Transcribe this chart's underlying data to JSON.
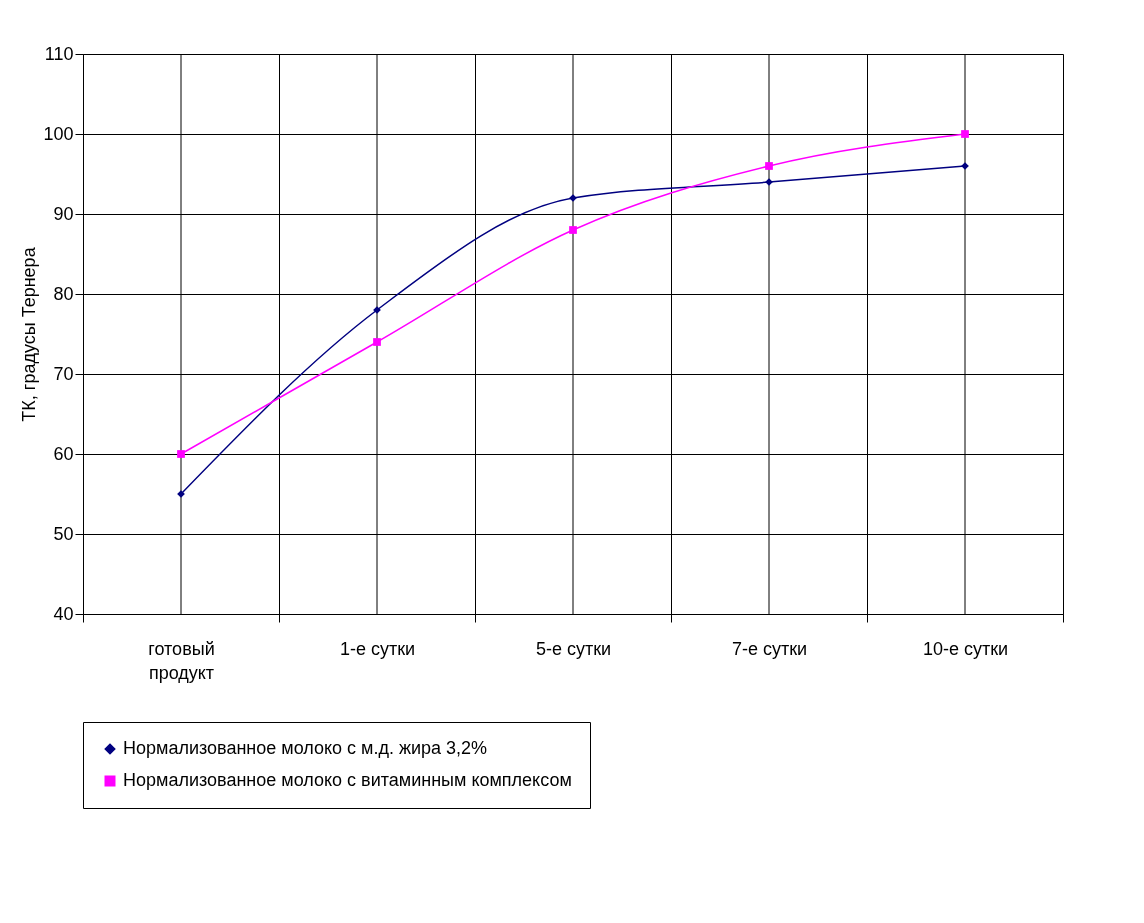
{
  "chart_data": {
    "type": "line",
    "ylabel": "ТК, градусы Тернера",
    "categories": [
      "готовый продукт",
      "1-е сутки",
      "5-е сутки",
      "7-е сутки",
      "10-е сутки"
    ],
    "series": [
      {
        "name": "Нормализованное молоко с м.д. жира 3,2%",
        "color": "#000080",
        "marker": "diamond",
        "values": [
          55,
          78,
          92,
          94,
          96
        ]
      },
      {
        "name": "Нормализованное молоко с витаминным комплексом",
        "color": "#ff00ff",
        "marker": "square",
        "values": [
          60,
          74,
          88,
          96,
          100
        ]
      }
    ],
    "ylim": [
      40,
      110
    ],
    "yticks": [
      40,
      50,
      60,
      70,
      80,
      90,
      100,
      110
    ],
    "grid": true,
    "legend": "bottom",
    "line_style": "solid"
  }
}
